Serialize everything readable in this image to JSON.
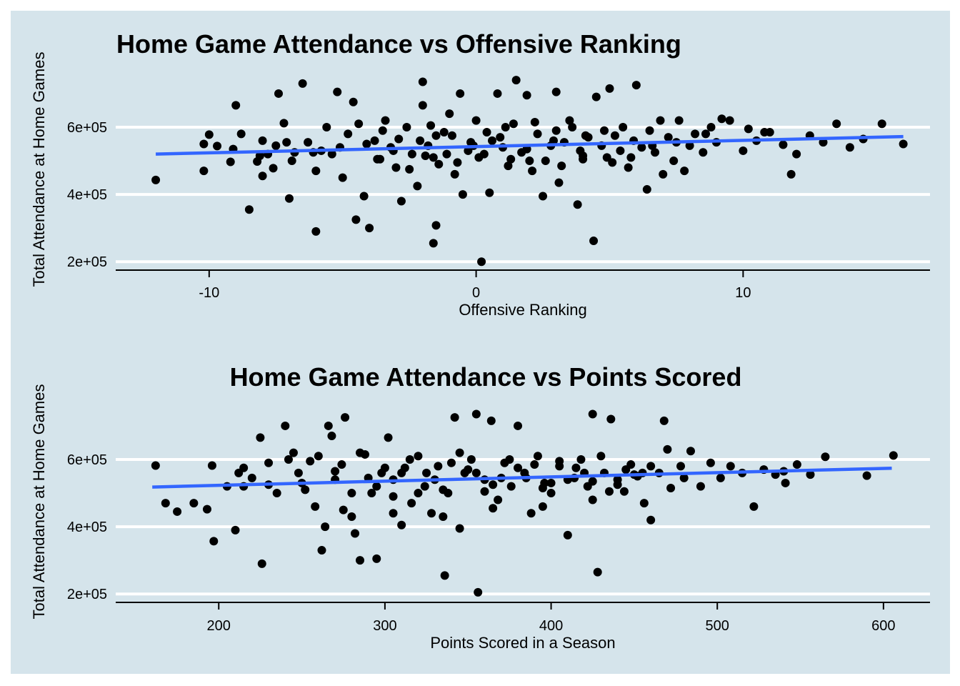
{
  "chart_data": [
    {
      "type": "scatter",
      "title": "Home Game Attendance vs Offensive Ranking",
      "xlabel": "Offensive Ranking",
      "ylabel": "Total Attendance at Home Games",
      "xlim": [
        -13.5,
        17.0
      ],
      "ylim": [
        175000,
        770000
      ],
      "x_ticks": [
        -10,
        0,
        10
      ],
      "x_tick_labels": [
        "-10",
        "0",
        "10"
      ],
      "y_ticks": [
        200000,
        400000,
        600000
      ],
      "y_tick_labels": [
        "2e+05",
        "4e+05",
        "6e+05"
      ],
      "grid": "horizontal",
      "trend_line": {
        "x": [
          -12.0,
          16.0
        ],
        "y": [
          520000,
          572000
        ]
      },
      "points": [
        [
          -12.0,
          443000
        ],
        [
          -10.2,
          470000
        ],
        [
          -10.2,
          550000
        ],
        [
          -10.0,
          578000
        ],
        [
          -9.7,
          544000
        ],
        [
          -9.2,
          497000
        ],
        [
          -9.0,
          665000
        ],
        [
          -8.8,
          580000
        ],
        [
          -8.5,
          355000
        ],
        [
          -8.2,
          498000
        ],
        [
          -8.0,
          560000
        ],
        [
          -8.0,
          455000
        ],
        [
          -7.8,
          520000
        ],
        [
          -7.6,
          478000
        ],
        [
          -7.5,
          545000
        ],
        [
          -7.4,
          700000
        ],
        [
          -7.2,
          612000
        ],
        [
          -7.0,
          388000
        ],
        [
          -6.9,
          500000
        ],
        [
          -6.8,
          525000
        ],
        [
          -6.5,
          730000
        ],
        [
          -6.3,
          555000
        ],
        [
          -6.0,
          470000
        ],
        [
          -6.0,
          290000
        ],
        [
          -5.8,
          530000
        ],
        [
          -5.6,
          600000
        ],
        [
          -5.4,
          520000
        ],
        [
          -5.2,
          705000
        ],
        [
          -5.0,
          450000
        ],
        [
          -4.8,
          580000
        ],
        [
          -4.6,
          675000
        ],
        [
          -4.5,
          325000
        ],
        [
          -4.2,
          395000
        ],
        [
          -4.0,
          300000
        ],
        [
          -3.8,
          560000
        ],
        [
          -3.6,
          505000
        ],
        [
          -3.4,
          620000
        ],
        [
          -3.2,
          540000
        ],
        [
          -3.0,
          480000
        ],
        [
          -2.8,
          380000
        ],
        [
          -2.6,
          600000
        ],
        [
          -2.4,
          520000
        ],
        [
          -2.2,
          425000
        ],
        [
          -2.0,
          665000
        ],
        [
          -1.8,
          545000
        ],
        [
          -1.6,
          510000
        ],
        [
          -1.4,
          490000
        ],
        [
          -1.2,
          585000
        ],
        [
          -1.0,
          640000
        ],
        [
          -0.8,
          460000
        ],
        [
          -0.6,
          700000
        ],
        [
          -0.5,
          400000
        ],
        [
          -0.3,
          530000
        ],
        [
          -0.2,
          555000
        ],
        [
          0.0,
          620000
        ],
        [
          0.2,
          200000
        ],
        [
          -1.5,
          308000
        ],
        [
          -1.6,
          255000
        ],
        [
          -2.0,
          735000
        ],
        [
          -1.5,
          575000
        ],
        [
          0.3,
          520000
        ],
        [
          0.5,
          405000
        ],
        [
          0.6,
          560000
        ],
        [
          0.8,
          700000
        ],
        [
          1.0,
          540000
        ],
        [
          1.2,
          485000
        ],
        [
          1.4,
          610000
        ],
        [
          1.5,
          740000
        ],
        [
          1.7,
          525000
        ],
        [
          1.9,
          695000
        ],
        [
          2.1,
          470000
        ],
        [
          2.3,
          580000
        ],
        [
          2.5,
          395000
        ],
        [
          2.6,
          500000
        ],
        [
          2.8,
          545000
        ],
        [
          3.0,
          705000
        ],
        [
          3.1,
          435000
        ],
        [
          3.3,
          555000
        ],
        [
          3.5,
          620000
        ],
        [
          3.6,
          600000
        ],
        [
          3.8,
          370000
        ],
        [
          4.0,
          515000
        ],
        [
          4.2,
          570000
        ],
        [
          4.4,
          262000
        ],
        [
          4.5,
          690000
        ],
        [
          4.7,
          545000
        ],
        [
          4.9,
          510000
        ],
        [
          5.0,
          715000
        ],
        [
          5.2,
          575000
        ],
        [
          5.4,
          530000
        ],
        [
          5.5,
          600000
        ],
        [
          5.7,
          480000
        ],
        [
          5.9,
          560000
        ],
        [
          6.0,
          725000
        ],
        [
          6.2,
          540000
        ],
        [
          6.4,
          415000
        ],
        [
          6.5,
          590000
        ],
        [
          6.7,
          525000
        ],
        [
          6.9,
          620000
        ],
        [
          7.0,
          460000
        ],
        [
          7.2,
          570000
        ],
        [
          7.4,
          500000
        ],
        [
          7.5,
          555000
        ],
        [
          7.8,
          470000
        ],
        [
          8.0,
          545000
        ],
        [
          8.2,
          580000
        ],
        [
          8.5,
          525000
        ],
        [
          8.8,
          600000
        ],
        [
          9.0,
          555000
        ],
        [
          9.5,
          620000
        ],
        [
          10.0,
          530000
        ],
        [
          10.2,
          595000
        ],
        [
          10.5,
          560000
        ],
        [
          11.0,
          585000
        ],
        [
          11.5,
          548000
        ],
        [
          12.0,
          520000
        ],
        [
          12.5,
          575000
        ],
        [
          13.0,
          555000
        ],
        [
          13.5,
          610000
        ],
        [
          14.0,
          540000
        ],
        [
          14.5,
          565000
        ],
        [
          15.2,
          610000
        ],
        [
          16.0,
          550000
        ],
        [
          11.8,
          460000
        ],
        [
          10.8,
          585000
        ],
        [
          9.2,
          625000
        ],
        [
          8.6,
          580000
        ],
        [
          7.6,
          620000
        ],
        [
          6.6,
          545000
        ],
        [
          5.8,
          510000
        ],
        [
          4.8,
          590000
        ],
        [
          3.9,
          530000
        ],
        [
          2.9,
          560000
        ],
        [
          1.9,
          535000
        ],
        [
          0.9,
          570000
        ],
        [
          -0.1,
          545000
        ],
        [
          -1.1,
          520000
        ],
        [
          -2.1,
          560000
        ],
        [
          -3.1,
          530000
        ],
        [
          -4.1,
          550000
        ],
        [
          -5.1,
          540000
        ],
        [
          -6.1,
          525000
        ],
        [
          -7.1,
          555000
        ],
        [
          -8.1,
          515000
        ],
        [
          -9.1,
          535000
        ],
        [
          -3.5,
          590000
        ],
        [
          -2.5,
          475000
        ],
        [
          -1.7,
          605000
        ],
        [
          -0.7,
          495000
        ],
        [
          0.4,
          585000
        ],
        [
          1.3,
          505000
        ],
        [
          2.2,
          615000
        ],
        [
          3.2,
          485000
        ],
        [
          4.1,
          575000
        ],
        [
          5.1,
          495000
        ],
        [
          -4.4,
          610000
        ],
        [
          -3.7,
          505000
        ],
        [
          -2.9,
          565000
        ],
        [
          -1.9,
          515000
        ],
        [
          -0.9,
          575000
        ],
        [
          0.1,
          510000
        ],
        [
          1.1,
          600000
        ],
        [
          2.0,
          500000
        ],
        [
          3.0,
          590000
        ],
        [
          4.0,
          505000
        ]
      ]
    },
    {
      "type": "scatter",
      "title": "Home Game Attendance vs Points Scored",
      "xlabel": "Points Scored in a Season",
      "ylabel": "Total Attendance at Home Games",
      "xlim": [
        138,
        628
      ],
      "ylim": [
        175000,
        770000
      ],
      "x_ticks": [
        200,
        300,
        400,
        500,
        600
      ],
      "x_tick_labels": [
        "200",
        "300",
        "400",
        "500",
        "600"
      ],
      "y_ticks": [
        200000,
        400000,
        600000
      ],
      "y_tick_labels": [
        "2e+05",
        "4e+05",
        "6e+05"
      ],
      "grid": "horizontal",
      "trend_line": {
        "x": [
          160,
          605
        ],
        "y": [
          518000,
          574000
        ]
      },
      "points": [
        [
          162,
          582000
        ],
        [
          168,
          470000
        ],
        [
          175,
          445000
        ],
        [
          185,
          470000
        ],
        [
          193,
          452000
        ],
        [
          196,
          582000
        ],
        [
          197,
          357000
        ],
        [
          205,
          520000
        ],
        [
          210,
          390000
        ],
        [
          212,
          560000
        ],
        [
          215,
          575000
        ],
        [
          220,
          545000
        ],
        [
          225,
          665000
        ],
        [
          226,
          290000
        ],
        [
          230,
          525000
        ],
        [
          235,
          500000
        ],
        [
          240,
          700000
        ],
        [
          242,
          600000
        ],
        [
          245,
          620000
        ],
        [
          248,
          560000
        ],
        [
          252,
          510000
        ],
        [
          255,
          595000
        ],
        [
          258,
          460000
        ],
        [
          262,
          330000
        ],
        [
          264,
          400000
        ],
        [
          266,
          700000
        ],
        [
          268,
          670000
        ],
        [
          270,
          540000
        ],
        [
          274,
          585000
        ],
        [
          276,
          725000
        ],
        [
          280,
          430000
        ],
        [
          282,
          380000
        ],
        [
          285,
          300000
        ],
        [
          288,
          615000
        ],
        [
          292,
          500000
        ],
        [
          295,
          305000
        ],
        [
          298,
          560000
        ],
        [
          302,
          665000
        ],
        [
          305,
          540000
        ],
        [
          310,
          405000
        ],
        [
          312,
          575000
        ],
        [
          316,
          470000
        ],
        [
          320,
          610000
        ],
        [
          324,
          520000
        ],
        [
          328,
          440000
        ],
        [
          332,
          580000
        ],
        [
          336,
          255000
        ],
        [
          338,
          500000
        ],
        [
          342,
          725000
        ],
        [
          345,
          395000
        ],
        [
          348,
          560000
        ],
        [
          352,
          600000
        ],
        [
          355,
          735000
        ],
        [
          356,
          205000
        ],
        [
          360,
          540000
        ],
        [
          364,
          715000
        ],
        [
          368,
          480000
        ],
        [
          372,
          590000
        ],
        [
          376,
          520000
        ],
        [
          380,
          700000
        ],
        [
          384,
          560000
        ],
        [
          388,
          440000
        ],
        [
          392,
          610000
        ],
        [
          396,
          530000
        ],
        [
          400,
          500000
        ],
        [
          405,
          580000
        ],
        [
          410,
          375000
        ],
        [
          414,
          545000
        ],
        [
          418,
          600000
        ],
        [
          422,
          520000
        ],
        [
          425,
          735000
        ],
        [
          428,
          265000
        ],
        [
          432,
          560000
        ],
        [
          436,
          720000
        ],
        [
          440,
          540000
        ],
        [
          444,
          505000
        ],
        [
          448,
          585000
        ],
        [
          452,
          550000
        ],
        [
          456,
          470000
        ],
        [
          460,
          420000
        ],
        [
          465,
          560000
        ],
        [
          468,
          715000
        ],
        [
          472,
          515000
        ],
        [
          478,
          580000
        ],
        [
          484,
          625000
        ],
        [
          490,
          520000
        ],
        [
          496,
          590000
        ],
        [
          502,
          545000
        ],
        [
          508,
          580000
        ],
        [
          515,
          560000
        ],
        [
          522,
          460000
        ],
        [
          528,
          570000
        ],
        [
          535,
          555000
        ],
        [
          541,
          530000
        ],
        [
          548,
          585000
        ],
        [
          556,
          555000
        ],
        [
          565,
          608000
        ],
        [
          590,
          552000
        ],
        [
          606,
          612000
        ],
        [
          540,
          565000
        ],
        [
          470,
          630000
        ],
        [
          450,
          555000
        ],
        [
          430,
          610000
        ],
        [
          410,
          540000
        ],
        [
          390,
          585000
        ],
        [
          370,
          545000
        ],
        [
          350,
          570000
        ],
        [
          330,
          540000
        ],
        [
          310,
          560000
        ],
        [
          290,
          545000
        ],
        [
          270,
          565000
        ],
        [
          250,
          530000
        ],
        [
          230,
          590000
        ],
        [
          215,
          520000
        ],
        [
          260,
          610000
        ],
        [
          280,
          500000
        ],
        [
          300,
          575000
        ],
        [
          320,
          500000
        ],
        [
          340,
          590000
        ],
        [
          360,
          505000
        ],
        [
          380,
          575000
        ],
        [
          400,
          530000
        ],
        [
          420,
          560000
        ],
        [
          440,
          525000
        ],
        [
          460,
          580000
        ],
        [
          275,
          450000
        ],
        [
          295,
          520000
        ],
        [
          315,
          600000
        ],
        [
          335,
          510000
        ],
        [
          355,
          560000
        ],
        [
          375,
          600000
        ],
        [
          395,
          515000
        ],
        [
          415,
          575000
        ],
        [
          435,
          505000
        ],
        [
          455,
          560000
        ],
        [
          285,
          620000
        ],
        [
          305,
          490000
        ],
        [
          325,
          560000
        ],
        [
          345,
          620000
        ],
        [
          365,
          525000
        ],
        [
          385,
          545000
        ],
        [
          405,
          595000
        ],
        [
          425,
          535000
        ],
        [
          445,
          570000
        ],
        [
          480,
          545000
        ],
        [
          305,
          440000
        ],
        [
          335,
          430000
        ],
        [
          365,
          455000
        ],
        [
          395,
          460000
        ],
        [
          425,
          480000
        ]
      ]
    }
  ]
}
